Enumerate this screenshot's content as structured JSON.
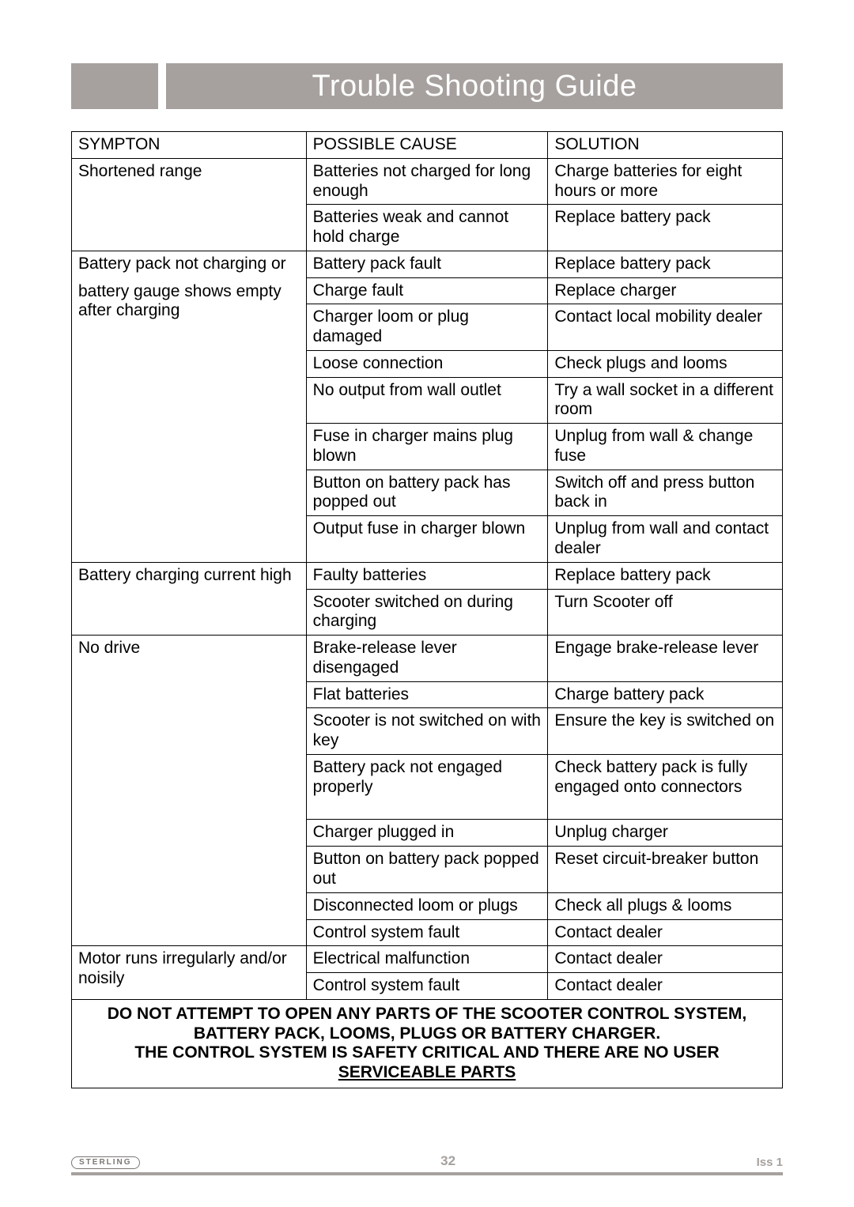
{
  "title": "Trouble Shooting Guide",
  "headers": {
    "c1": "SYMPTON",
    "c2": "POSSIBLE CAUSE",
    "c3": "SOLUTION"
  },
  "footer": {
    "logo": "STERLING",
    "page": "32",
    "issue": "Iss 1"
  },
  "colors": {
    "accent": "#a6a19e",
    "text": "#000000",
    "border": "#000000",
    "footer_text": "#a6a19e"
  },
  "warning": {
    "line1": "DO NOT ATTEMPT TO OPEN ANY PARTS OF THE SCOOTER CONTROL SYSTEM,",
    "line2": "BATTERY PACK, LOOMS, PLUGS OR BATTERY CHARGER.",
    "line3": "THE CONTROL SYSTEM IS SAFETY CRITICAL AND THERE ARE NO USER",
    "line4": "SERVICEABLE PARTS"
  },
  "groups": [
    {
      "symptom": "Shortened range",
      "rows": [
        {
          "cause": "Batteries not charged for long enough",
          "solution": "Charge batteries for eight hours or more"
        },
        {
          "cause": "Batteries weak and cannot hold charge",
          "solution": "Replace battery pack"
        }
      ]
    },
    {
      "symptom_html": true,
      "symptom_l1": "Battery pack not charging or",
      "symptom_l2": "battery gauge shows empty after charging",
      "rows": [
        {
          "cause": "Battery pack fault",
          "solution": "Replace battery pack"
        },
        {
          "cause": "Charge fault",
          "solution": "Replace charger"
        },
        {
          "cause": "Charger loom or plug damaged",
          "solution": "Contact local mobility dealer"
        },
        {
          "cause": "Loose connection",
          "solution": "Check plugs and looms"
        },
        {
          "cause": "No output from wall outlet",
          "solution": "Try a wall socket in a different room"
        },
        {
          "cause": "Fuse in charger mains plug blown",
          "solution": "Unplug from wall & change fuse"
        },
        {
          "cause": "Button on battery pack has popped out",
          "solution": "Switch off and press button back in"
        },
        {
          "cause": "Output fuse in charger blown",
          "solution": "Unplug from wall and contact dealer"
        }
      ]
    },
    {
      "symptom": "Battery charging current high",
      "rows": [
        {
          "cause": "Faulty batteries",
          "solution": "Replace battery pack"
        },
        {
          "cause": "Scooter switched on during charging",
          "solution": "Turn Scooter off"
        }
      ]
    },
    {
      "symptom": "No drive",
      "rows": [
        {
          "cause": "Brake-release lever disengaged",
          "solution": "Engage brake-release lever"
        },
        {
          "cause": "Flat batteries",
          "solution": "Charge battery pack"
        },
        {
          "cause": "Scooter is not switched on with key",
          "solution": "Ensure the key is switched on"
        },
        {
          "cause": "Battery pack not engaged properly",
          "solution": "Check battery pack is fully engaged onto connectors",
          "tall": true
        },
        {
          "cause": "Charger plugged in",
          "solution": "Unplug charger"
        },
        {
          "cause": "Button on battery pack popped out",
          "solution": "Reset circuit-breaker button"
        },
        {
          "cause": "Disconnected loom or plugs",
          "solution": "Check all plugs & looms"
        },
        {
          "cause": "Control system fault",
          "solution": "Contact dealer"
        }
      ]
    },
    {
      "symptom": "Motor runs irregularly and/or noisily",
      "rows": [
        {
          "cause": "Electrical malfunction",
          "solution": "Contact dealer"
        },
        {
          "cause": "Control system fault",
          "solution": "Contact dealer"
        }
      ]
    }
  ]
}
